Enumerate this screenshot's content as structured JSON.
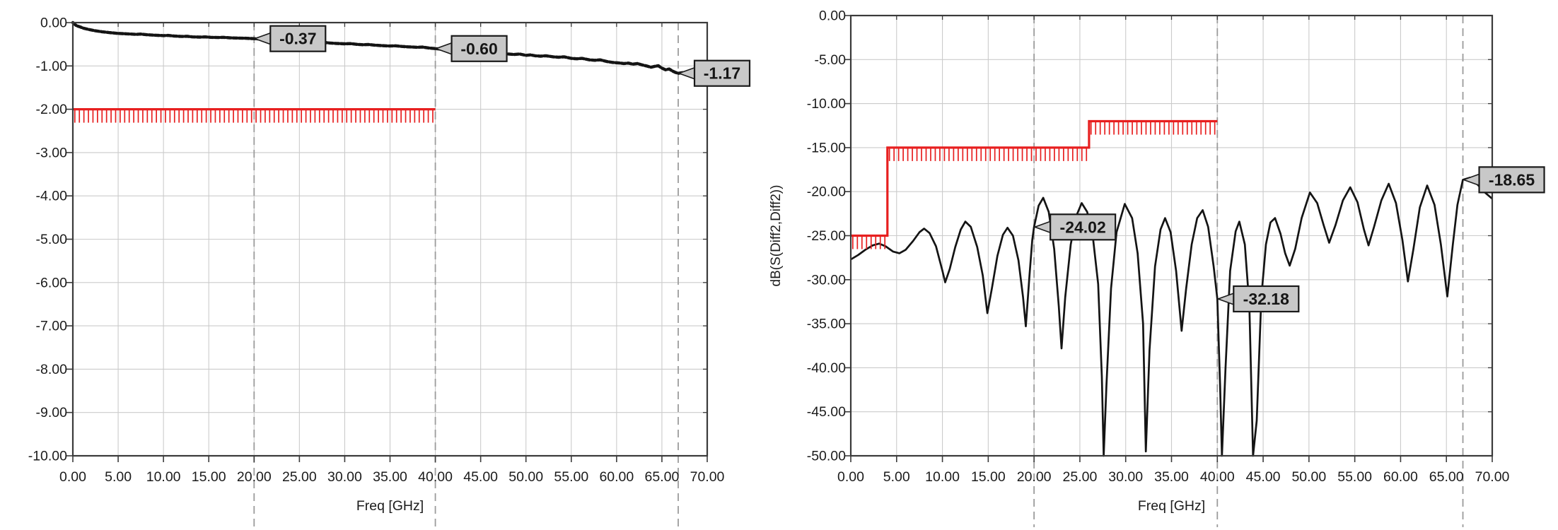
{
  "window": {
    "background": "#ffffff"
  },
  "styles": {
    "frame_color": "#3a3a3a",
    "grid_color": "#cbcbcb",
    "text_color": "#1b1b1b",
    "trace_color": "#141414",
    "limit_color": "#e71f1f",
    "marker_line_color": "#9b9b9b",
    "callout_fill": "#c8c8c8",
    "callout_border": "#1a1a1a"
  },
  "chart_data": [
    {
      "type": "line",
      "id": "left-plot",
      "title": "",
      "xlabel": "Freq [GHz]",
      "ylabel": "",
      "xlim": [
        0,
        70
      ],
      "ylim": [
        -10,
        0
      ],
      "xtick_step": 5,
      "xtick_labels": [
        "0.00",
        "5.00",
        "10.00",
        "15.00",
        "20.00",
        "25.00",
        "30.00",
        "35.00",
        "40.00",
        "45.00",
        "50.00",
        "55.00",
        "60.00",
        "65.00",
        "70.00"
      ],
      "ytick_step": 1,
      "ytick_labels": [
        "0.00",
        "-1.00",
        "-2.00",
        "-3.00",
        "-4.00",
        "-5.00",
        "-6.00",
        "-7.00",
        "-8.00",
        "-9.00",
        "-10.00"
      ],
      "grid": true,
      "legend": "none",
      "marker_line_xs": [
        20,
        40,
        66.8
      ],
      "markers": [
        {
          "x": 20,
          "y": -0.37,
          "label": "-0.37"
        },
        {
          "x": 40,
          "y": -0.6,
          "label": "-0.60"
        },
        {
          "x": 66.8,
          "y": -1.17,
          "label": "-1.17"
        }
      ],
      "series": [
        {
          "name": "trace",
          "role": "trace",
          "style": "beaded",
          "points": [
            [
              0,
              0
            ],
            [
              0.15,
              -0.03
            ],
            [
              0.4,
              -0.07
            ],
            [
              0.8,
              -0.1
            ],
            [
              1.2,
              -0.13
            ],
            [
              1.8,
              -0.16
            ],
            [
              2.5,
              -0.19
            ],
            [
              3.2,
              -0.21
            ],
            [
              4,
              -0.23
            ],
            [
              5,
              -0.25
            ],
            [
              6,
              -0.26
            ],
            [
              7,
              -0.27
            ],
            [
              7.5,
              -0.265
            ],
            [
              8.2,
              -0.28
            ],
            [
              9,
              -0.29
            ],
            [
              10,
              -0.3
            ],
            [
              10.5,
              -0.295
            ],
            [
              11.2,
              -0.31
            ],
            [
              12,
              -0.32
            ],
            [
              12.6,
              -0.315
            ],
            [
              13.2,
              -0.33
            ],
            [
              14,
              -0.335
            ],
            [
              14.6,
              -0.33
            ],
            [
              15.2,
              -0.34
            ],
            [
              16,
              -0.345
            ],
            [
              16.6,
              -0.34
            ],
            [
              17.3,
              -0.35
            ],
            [
              18,
              -0.355
            ],
            [
              19,
              -0.36
            ],
            [
              20,
              -0.37
            ],
            [
              21,
              -0.385
            ],
            [
              21.6,
              -0.38
            ],
            [
              22.3,
              -0.4
            ],
            [
              23,
              -0.41
            ],
            [
              23.6,
              -0.405
            ],
            [
              24.3,
              -0.425
            ],
            [
              25,
              -0.435
            ],
            [
              25.6,
              -0.43
            ],
            [
              26.3,
              -0.45
            ],
            [
              27,
              -0.46
            ],
            [
              27.6,
              -0.455
            ],
            [
              28.3,
              -0.47
            ],
            [
              29,
              -0.48
            ],
            [
              30,
              -0.49
            ],
            [
              30.6,
              -0.485
            ],
            [
              31.3,
              -0.5
            ],
            [
              32,
              -0.51
            ],
            [
              32.6,
              -0.505
            ],
            [
              33.3,
              -0.52
            ],
            [
              34,
              -0.53
            ],
            [
              35,
              -0.54
            ],
            [
              35.6,
              -0.535
            ],
            [
              36.3,
              -0.55
            ],
            [
              37,
              -0.56
            ],
            [
              38,
              -0.57
            ],
            [
              38.6,
              -0.565
            ],
            [
              39.3,
              -0.585
            ],
            [
              40,
              -0.6
            ],
            [
              41,
              -0.62
            ],
            [
              41.5,
              -0.615
            ],
            [
              42,
              -0.64
            ],
            [
              43,
              -0.66
            ],
            [
              43.5,
              -0.655
            ],
            [
              44,
              -0.68
            ],
            [
              45,
              -0.69
            ],
            [
              45.5,
              -0.685
            ],
            [
              46,
              -0.705
            ],
            [
              46.6,
              -0.715
            ],
            [
              47.2,
              -0.705
            ],
            [
              48,
              -0.725
            ],
            [
              48.7,
              -0.735
            ],
            [
              49.3,
              -0.725
            ],
            [
              50,
              -0.755
            ],
            [
              50.5,
              -0.745
            ],
            [
              51,
              -0.765
            ],
            [
              51.6,
              -0.775
            ],
            [
              52.2,
              -0.765
            ],
            [
              53,
              -0.79
            ],
            [
              53.6,
              -0.8
            ],
            [
              54.2,
              -0.79
            ],
            [
              55,
              -0.825
            ],
            [
              55.6,
              -0.835
            ],
            [
              56.2,
              -0.825
            ],
            [
              57,
              -0.86
            ],
            [
              57.6,
              -0.87
            ],
            [
              58.2,
              -0.86
            ],
            [
              59,
              -0.9
            ],
            [
              59.6,
              -0.92
            ],
            [
              60.2,
              -0.93
            ],
            [
              60.8,
              -0.945
            ],
            [
              61.3,
              -0.935
            ],
            [
              61.8,
              -0.96
            ],
            [
              62.3,
              -0.945
            ],
            [
              62.8,
              -0.975
            ],
            [
              63.3,
              -1.0
            ],
            [
              63.8,
              -1.03
            ],
            [
              64.2,
              -1.01
            ],
            [
              64.6,
              -0.995
            ],
            [
              65,
              -1.05
            ],
            [
              65.4,
              -1.09
            ],
            [
              65.8,
              -1.07
            ],
            [
              66.2,
              -1.12
            ],
            [
              66.5,
              -1.15
            ],
            [
              66.8,
              -1.17
            ],
            [
              67.3,
              -1.155
            ],
            [
              68,
              -1.175
            ],
            [
              68.7,
              -1.19
            ],
            [
              69.4,
              -1.2
            ],
            [
              70,
              -1.21
            ]
          ]
        },
        {
          "name": "limit",
          "role": "limit",
          "hatch": "below",
          "points": [
            [
              0,
              -2
            ],
            [
              40,
              -2
            ]
          ]
        }
      ]
    },
    {
      "type": "line",
      "id": "right-plot",
      "title": "",
      "xlabel": "Freq [GHz]",
      "ylabel": "dB(S(Diff2,Diff2))",
      "xlim": [
        0,
        70
      ],
      "ylim": [
        -50,
        0
      ],
      "xtick_step": 5,
      "xtick_labels": [
        "0.00",
        "5.00",
        "10.00",
        "15.00",
        "20.00",
        "25.00",
        "30.00",
        "35.00",
        "40.00",
        "45.00",
        "50.00",
        "55.00",
        "60.00",
        "65.00",
        "70.00"
      ],
      "ytick_step": 5,
      "ytick_labels": [
        "0.00",
        "-5.00",
        "-10.00",
        "-15.00",
        "-20.00",
        "-25.00",
        "-30.00",
        "-35.00",
        "-40.00",
        "-45.00",
        "-50.00"
      ],
      "grid": true,
      "legend": "none",
      "marker_line_xs": [
        20,
        40,
        66.8
      ],
      "markers": [
        {
          "x": 20,
          "y": -24.02,
          "label": "-24.02"
        },
        {
          "x": 40,
          "y": -32.18,
          "label": "-32.18"
        },
        {
          "x": 66.8,
          "y": -18.65,
          "label": "-18.65"
        }
      ],
      "series": [
        {
          "name": "trace",
          "role": "trace",
          "style": "solid",
          "points": [
            [
              0,
              -27.7
            ],
            [
              0.8,
              -27.2
            ],
            [
              1.6,
              -26.6
            ],
            [
              2.4,
              -26.1
            ],
            [
              3.1,
              -25.9
            ],
            [
              3.8,
              -26.2
            ],
            [
              4.6,
              -26.8
            ],
            [
              5.3,
              -27.0
            ],
            [
              6,
              -26.6
            ],
            [
              6.8,
              -25.6
            ],
            [
              7.5,
              -24.6
            ],
            [
              8,
              -24.2
            ],
            [
              8.6,
              -24.7
            ],
            [
              9.3,
              -26.2
            ],
            [
              10,
              -29
            ],
            [
              10.3,
              -30.3
            ],
            [
              10.8,
              -28.8
            ],
            [
              11.4,
              -26.3
            ],
            [
              12,
              -24.3
            ],
            [
              12.5,
              -23.4
            ],
            [
              13.1,
              -24
            ],
            [
              13.8,
              -26.3
            ],
            [
              14.4,
              -29.5
            ],
            [
              14.9,
              -33.8
            ],
            [
              15.4,
              -31
            ],
            [
              16,
              -27.3
            ],
            [
              16.6,
              -24.9
            ],
            [
              17.1,
              -24.1
            ],
            [
              17.7,
              -25
            ],
            [
              18.3,
              -27.8
            ],
            [
              18.8,
              -32
            ],
            [
              19.1,
              -35.3
            ],
            [
              19.5,
              -29.5
            ],
            [
              19.8,
              -25.5
            ],
            [
              20,
              -24.02
            ],
            [
              20.5,
              -21.6
            ],
            [
              21,
              -20.7
            ],
            [
              21.6,
              -22.3
            ],
            [
              22.2,
              -26.5
            ],
            [
              22.7,
              -33
            ],
            [
              23,
              -37.8
            ],
            [
              23.4,
              -32
            ],
            [
              24,
              -26
            ],
            [
              24.6,
              -22.8
            ],
            [
              25.2,
              -21.3
            ],
            [
              25.8,
              -22.3
            ],
            [
              26.4,
              -25
            ],
            [
              27,
              -30.5
            ],
            [
              27.4,
              -41
            ],
            [
              27.6,
              -50
            ],
            [
              27.9,
              -42
            ],
            [
              28.4,
              -31
            ],
            [
              29,
              -24.6
            ],
            [
              29.9,
              -21.4
            ],
            [
              30.7,
              -23
            ],
            [
              31.3,
              -27
            ],
            [
              31.9,
              -35
            ],
            [
              32.2,
              -49.5
            ],
            [
              32.6,
              -38
            ],
            [
              33.2,
              -28.5
            ],
            [
              33.8,
              -24.3
            ],
            [
              34.3,
              -23
            ],
            [
              34.9,
              -24.6
            ],
            [
              35.5,
              -29
            ],
            [
              36.1,
              -35.8
            ],
            [
              36.6,
              -31
            ],
            [
              37.2,
              -26
            ],
            [
              37.8,
              -23
            ],
            [
              38.4,
              -22.1
            ],
            [
              39,
              -24
            ],
            [
              39.6,
              -28.5
            ],
            [
              40,
              -32.18
            ],
            [
              40.3,
              -42
            ],
            [
              40.5,
              -50
            ],
            [
              40.9,
              -40
            ],
            [
              41.4,
              -29
            ],
            [
              42,
              -24.5
            ],
            [
              42.4,
              -23.4
            ],
            [
              43,
              -26
            ],
            [
              43.5,
              -33
            ],
            [
              43.9,
              -50
            ],
            [
              44.3,
              -46
            ],
            [
              44.8,
              -32
            ],
            [
              45.3,
              -26
            ],
            [
              45.8,
              -23.5
            ],
            [
              46.3,
              -23
            ],
            [
              46.9,
              -24.8
            ],
            [
              47.4,
              -27
            ],
            [
              47.9,
              -28.4
            ],
            [
              48.5,
              -26.5
            ],
            [
              49.2,
              -23
            ],
            [
              50.1,
              -20.1
            ],
            [
              50.9,
              -21.3
            ],
            [
              51.6,
              -23.8
            ],
            [
              52.2,
              -25.8
            ],
            [
              52.9,
              -23.8
            ],
            [
              53.7,
              -21
            ],
            [
              54.5,
              -19.5
            ],
            [
              55.3,
              -21.2
            ],
            [
              56,
              -24.3
            ],
            [
              56.5,
              -26.1
            ],
            [
              57.1,
              -24
            ],
            [
              57.9,
              -21
            ],
            [
              58.7,
              -19.1
            ],
            [
              59.5,
              -21.3
            ],
            [
              60.2,
              -25.5
            ],
            [
              60.8,
              -30.2
            ],
            [
              61.4,
              -26.5
            ],
            [
              62.1,
              -21.8
            ],
            [
              62.9,
              -19.3
            ],
            [
              63.7,
              -21.5
            ],
            [
              64.4,
              -26
            ],
            [
              65.1,
              -31.9
            ],
            [
              65.7,
              -26
            ],
            [
              66.2,
              -21.5
            ],
            [
              66.8,
              -18.65
            ],
            [
              67.6,
              -18.4
            ],
            [
              68.4,
              -19.2
            ],
            [
              69.2,
              -20.1
            ],
            [
              70,
              -20.8
            ]
          ]
        },
        {
          "name": "limit",
          "role": "limit",
          "hatch": "below",
          "points": [
            [
              0,
              -25
            ],
            [
              4,
              -25
            ],
            [
              4,
              -15
            ],
            [
              26,
              -15
            ],
            [
              26,
              -12
            ],
            [
              40,
              -12
            ]
          ]
        }
      ]
    }
  ]
}
